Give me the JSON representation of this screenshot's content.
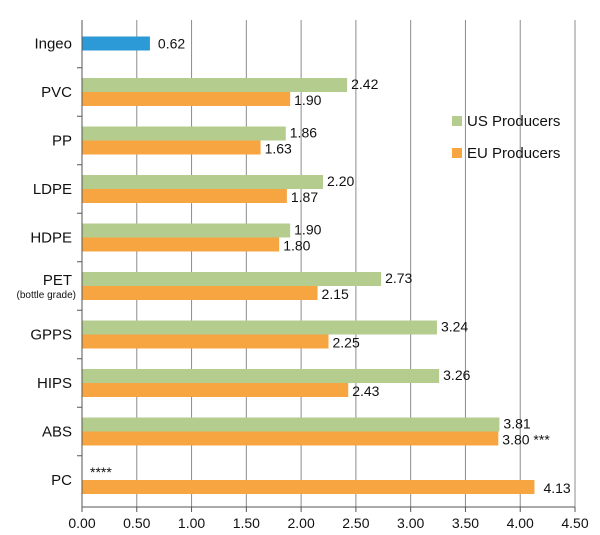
{
  "chart_data": {
    "type": "bar",
    "orientation": "horizontal",
    "categories": [
      {
        "label": "Ingeo"
      },
      {
        "label": "PVC"
      },
      {
        "label": "PP"
      },
      {
        "label": "LDPE"
      },
      {
        "label": "HDPE"
      },
      {
        "label": "PET",
        "sublabel": "(bottle grade)"
      },
      {
        "label": "GPPS"
      },
      {
        "label": "HIPS"
      },
      {
        "label": "ABS"
      },
      {
        "label": "PC"
      }
    ],
    "series": [
      {
        "name": "Ingeo",
        "color": "#2b9ad6",
        "values": [
          0.62,
          null,
          null,
          null,
          null,
          null,
          null,
          null,
          null,
          null
        ],
        "value_labels": [
          "0.62",
          "",
          "",
          "",
          "",
          "",
          "",
          "",
          "",
          ""
        ]
      },
      {
        "name": "US Producers",
        "color": "#b5cc8f",
        "values": [
          null,
          2.42,
          1.86,
          2.2,
          1.9,
          2.73,
          3.24,
          3.26,
          3.81,
          null
        ],
        "value_labels": [
          "",
          "2.42",
          "1.86",
          "2.20",
          "1.90",
          "2.73",
          "3.24",
          "3.26",
          "3.81",
          "****"
        ]
      },
      {
        "name": "EU Producers",
        "color": "#f7a541",
        "values": [
          null,
          1.9,
          1.63,
          1.87,
          1.8,
          2.15,
          2.25,
          2.43,
          3.8,
          4.13
        ],
        "value_labels": [
          "",
          "1.90",
          "1.63",
          "1.87",
          "1.80",
          "2.15",
          "2.25",
          "2.43",
          "3.80 ***",
          "4.13"
        ]
      }
    ],
    "x_ticks": [
      "0.00",
      "0.50",
      "1.00",
      "1.50",
      "2.00",
      "2.50",
      "3.00",
      "3.50",
      "4.00",
      "4.50"
    ],
    "xlim": [
      0,
      4.5
    ],
    "grid": true,
    "legend": {
      "placement": "right",
      "entries": [
        "US Producers",
        "EU Producers"
      ]
    }
  }
}
